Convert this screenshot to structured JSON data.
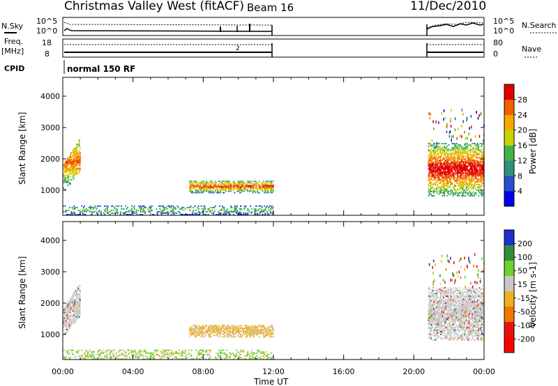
{
  "header": {
    "title": "Christmas Valley West (fitACF)",
    "beam": "Beam 16",
    "date": "11/Dec/2010"
  },
  "status_panels": {
    "nsky_label": "N.Sky",
    "nsky_ticks": [
      "10^5",
      "10^0"
    ],
    "nsearch_label": "N.Search",
    "nsearch_ticks": [
      "10^5",
      "10^0"
    ],
    "freq_label": "Freq.",
    "freq_unit": "[MHz]",
    "freq_ticks": [
      "18",
      "8"
    ],
    "nave_label": "Nave",
    "nave_ticks": [
      "80",
      "0"
    ],
    "cpid_label": "CPID",
    "cpid_value": "normal 150 RF"
  },
  "chart_data": [
    {
      "type": "heatmap",
      "name": "power",
      "ylabel": "Slant Range [km]",
      "yticks": [
        "1000",
        "2000",
        "3000",
        "4000"
      ],
      "ylim": [
        200,
        4600
      ],
      "xlim": [
        0,
        24
      ],
      "colorbar_label": "Power [dB]",
      "colorbar_ticks": [
        "4",
        "8",
        "12",
        "16",
        "20",
        "24",
        "28"
      ],
      "colorbar_range": [
        0,
        32
      ],
      "colors": [
        "#0000ee",
        "#2a4fc8",
        "#2f8f7a",
        "#3fb24a",
        "#c8d400",
        "#f7a800",
        "#f06000",
        "#e00000"
      ],
      "echo_regions": [
        {
          "t0": 0.0,
          "t1": 1.0,
          "r0": 1000,
          "r1": 2800,
          "peak": 24
        },
        {
          "t0": 7.2,
          "t1": 12.0,
          "r0": 900,
          "r1": 1300,
          "peak": 26
        },
        {
          "t0": 0.0,
          "t1": 12.0,
          "r0": 200,
          "r1": 500,
          "peak": 14
        },
        {
          "t0": 20.8,
          "t1": 24.0,
          "r0": 800,
          "r1": 2500,
          "peak": 30
        }
      ]
    },
    {
      "type": "heatmap",
      "name": "velocity",
      "ylabel": "Slant Range [km]",
      "yticks": [
        "1000",
        "2000",
        "3000",
        "4000"
      ],
      "ylim": [
        200,
        4600
      ],
      "xlim": [
        0,
        24
      ],
      "colorbar_label": "Velocity [m s-1]",
      "colorbar_ticks": [
        "200",
        "100",
        "50",
        "15",
        "-15",
        "-50",
        "-100",
        "-200"
      ],
      "colors": [
        "#2030d0",
        "#2f8f3a",
        "#6fd030",
        "#c8c8c8",
        "#f0b020",
        "#f07800",
        "#e81010",
        "#ff0000"
      ],
      "echo_regions": [
        {
          "t0": 0.0,
          "t1": 1.0,
          "r0": 1000,
          "r1": 2800,
          "v": 0
        },
        {
          "t0": 7.2,
          "t1": 12.0,
          "r0": 900,
          "r1": 1300,
          "v": -30
        },
        {
          "t0": 0.0,
          "t1": 12.0,
          "r0": 200,
          "r1": 500,
          "v": 40
        },
        {
          "t0": 20.8,
          "t1": 24.0,
          "r0": 800,
          "r1": 2500,
          "v": 0
        }
      ]
    }
  ],
  "xaxis": {
    "ticks": [
      "00:00",
      "04:00",
      "08:00",
      "12:00",
      "16:00",
      "20:00",
      "00:00"
    ],
    "label": "Time UT"
  }
}
